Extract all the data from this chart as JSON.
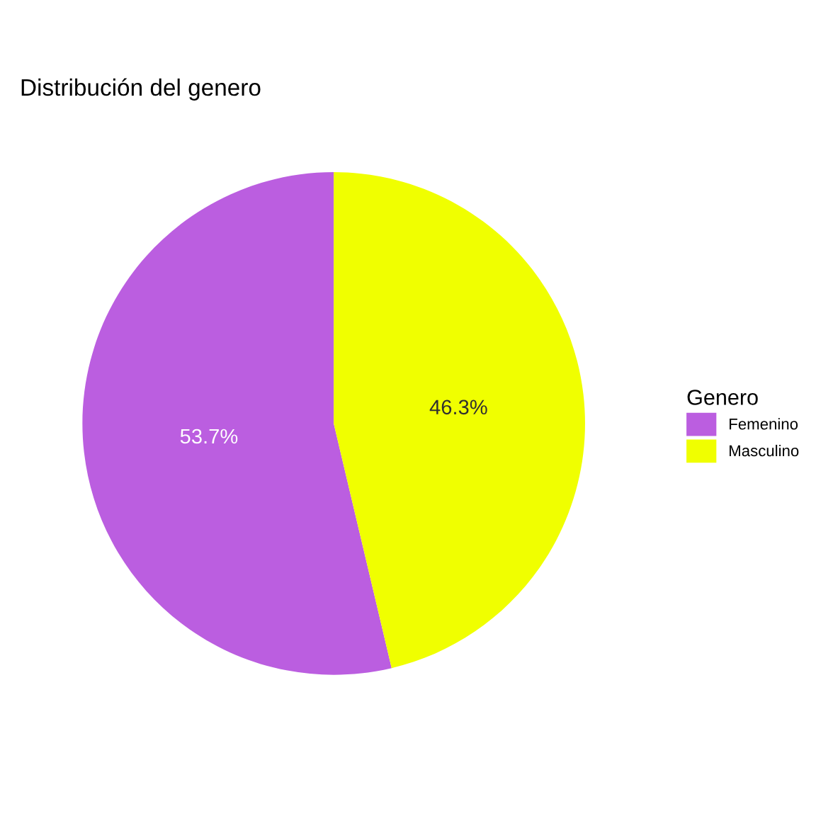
{
  "chart_data": {
    "type": "pie",
    "title": "Distribución del genero",
    "legend_title": "Genero",
    "categories": [
      "Femenino",
      "Masculino"
    ],
    "values": [
      53.7,
      46.3
    ],
    "colors": [
      "#bb5ee0",
      "#f0ff00"
    ],
    "value_labels": [
      "53.7%",
      "46.3%"
    ],
    "legend": "right"
  }
}
